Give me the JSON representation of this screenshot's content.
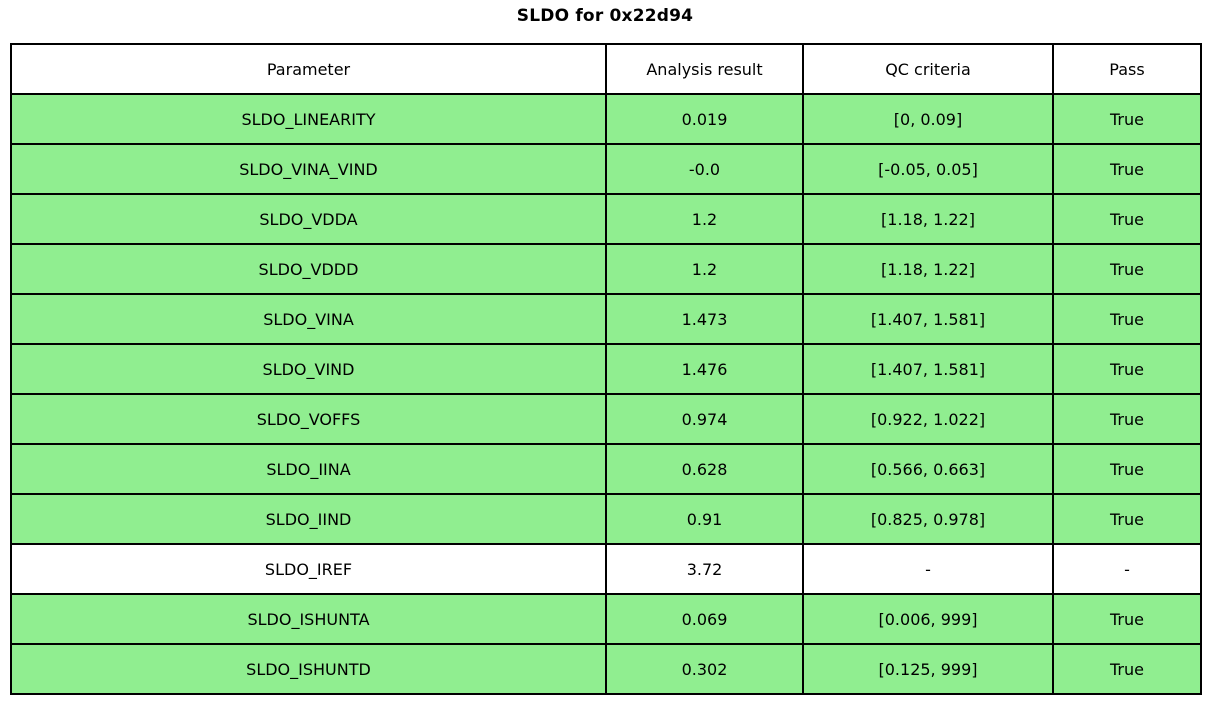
{
  "title": "SLDO for 0x22d94",
  "colors": {
    "pass_row": "#90EE90",
    "neutral_row": "#FFFFFF",
    "border": "#000000",
    "background": "#FFFFFF"
  },
  "chart_data": {
    "type": "table",
    "title": "SLDO for 0x22d94",
    "columns": [
      "Parameter",
      "Analysis result",
      "QC criteria",
      "Pass"
    ],
    "rows": [
      {
        "parameter": "SLDO_LINEARITY",
        "result": "0.019",
        "criteria": "[0, 0.09]",
        "pass": "True",
        "bg": "#90EE90"
      },
      {
        "parameter": "SLDO_VINA_VIND",
        "result": "-0.0",
        "criteria": "[-0.05, 0.05]",
        "pass": "True",
        "bg": "#90EE90"
      },
      {
        "parameter": "SLDO_VDDA",
        "result": "1.2",
        "criteria": "[1.18, 1.22]",
        "pass": "True",
        "bg": "#90EE90"
      },
      {
        "parameter": "SLDO_VDDD",
        "result": "1.2",
        "criteria": "[1.18, 1.22]",
        "pass": "True",
        "bg": "#90EE90"
      },
      {
        "parameter": "SLDO_VINA",
        "result": "1.473",
        "criteria": "[1.407, 1.581]",
        "pass": "True",
        "bg": "#90EE90"
      },
      {
        "parameter": "SLDO_VIND",
        "result": "1.476",
        "criteria": "[1.407, 1.581]",
        "pass": "True",
        "bg": "#90EE90"
      },
      {
        "parameter": "SLDO_VOFFS",
        "result": "0.974",
        "criteria": "[0.922, 1.022]",
        "pass": "True",
        "bg": "#90EE90"
      },
      {
        "parameter": "SLDO_IINA",
        "result": "0.628",
        "criteria": "[0.566, 0.663]",
        "pass": "True",
        "bg": "#90EE90"
      },
      {
        "parameter": "SLDO_IIND",
        "result": "0.91",
        "criteria": "[0.825, 0.978]",
        "pass": "True",
        "bg": "#90EE90"
      },
      {
        "parameter": "SLDO_IREF",
        "result": "3.72",
        "criteria": "-",
        "pass": "-",
        "bg": "#FFFFFF"
      },
      {
        "parameter": "SLDO_ISHUNTA",
        "result": "0.069",
        "criteria": "[0.006, 999]",
        "pass": "True",
        "bg": "#90EE90"
      },
      {
        "parameter": "SLDO_ISHUNTD",
        "result": "0.302",
        "criteria": "[0.125, 999]",
        "pass": "True",
        "bg": "#90EE90"
      }
    ]
  }
}
